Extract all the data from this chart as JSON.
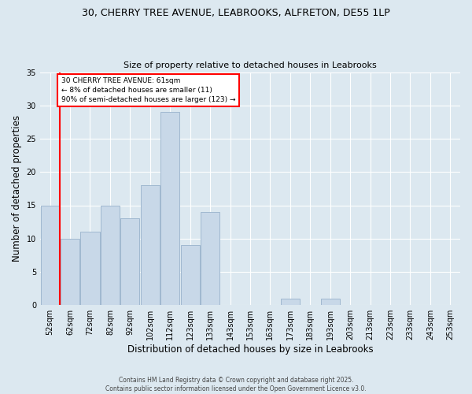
{
  "title_line1": "30, CHERRY TREE AVENUE, LEABROOKS, ALFRETON, DE55 1LP",
  "title_line2": "Size of property relative to detached houses in Leabrooks",
  "xlabel": "Distribution of detached houses by size in Leabrooks",
  "ylabel": "Number of detached properties",
  "footer": "Contains HM Land Registry data © Crown copyright and database right 2025.\nContains public sector information licensed under the Open Government Licence v3.0.",
  "bins": [
    "52sqm",
    "62sqm",
    "72sqm",
    "82sqm",
    "92sqm",
    "102sqm",
    "112sqm",
    "123sqm",
    "133sqm",
    "143sqm",
    "153sqm",
    "163sqm",
    "173sqm",
    "183sqm",
    "193sqm",
    "203sqm",
    "213sqm",
    "223sqm",
    "233sqm",
    "243sqm",
    "253sqm"
  ],
  "values": [
    15,
    10,
    11,
    15,
    13,
    18,
    29,
    9,
    14,
    0,
    0,
    0,
    1,
    0,
    1,
    0,
    0,
    0,
    0,
    0,
    0
  ],
  "bar_color": "#c8d8e8",
  "bar_edge_color": "#a0b8d0",
  "annotation_text": "30 CHERRY TREE AVENUE: 61sqm\n← 8% of detached houses are smaller (11)\n90% of semi-detached houses are larger (123) →",
  "annotation_box_color": "white",
  "annotation_box_edge": "red",
  "red_line_color": "red",
  "ylim": [
    0,
    35
  ],
  "yticks": [
    0,
    5,
    10,
    15,
    20,
    25,
    30,
    35
  ],
  "background_color": "#dce8f0",
  "grid_color": "white",
  "red_line_x": 0.5
}
